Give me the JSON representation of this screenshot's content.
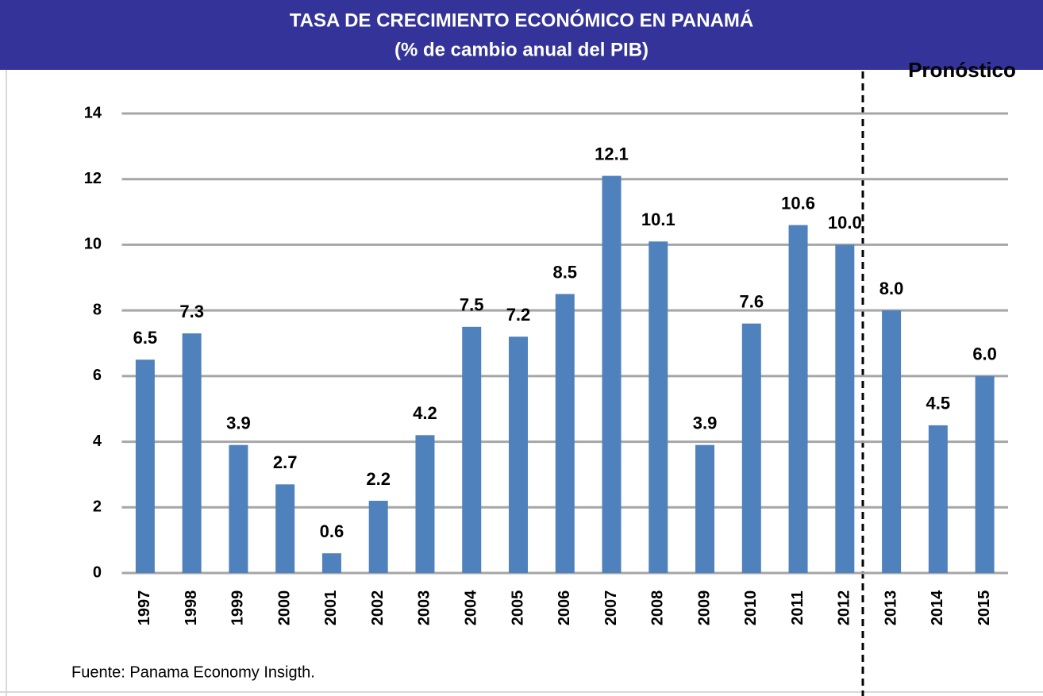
{
  "chart_data": {
    "type": "bar",
    "title": "TASA DE CRECIMIENTO ECONÓMICO EN PANAMÁ",
    "subtitle": "(% de cambio anual del PIB)",
    "annotation": "Pronóstico",
    "source": "Fuente: Panama Economy Insigth.",
    "categories": [
      "1997",
      "1998",
      "1999",
      "2000",
      "2001",
      "2002",
      "2003",
      "2004",
      "2005",
      "2006",
      "2007",
      "2008",
      "2009",
      "2010",
      "2011",
      "2012",
      "2013",
      "2014",
      "2015"
    ],
    "values": [
      6.5,
      7.3,
      3.9,
      2.7,
      0.6,
      2.2,
      4.2,
      7.5,
      7.2,
      8.5,
      12.1,
      10.1,
      3.9,
      7.6,
      10.6,
      10.0,
      8.0,
      4.5,
      6.0
    ],
    "value_labels": [
      "6.5",
      "7.3",
      "3.9",
      "2.7",
      "0.6",
      "2.2",
      "4.2",
      "7.5",
      "7.2",
      "8.5",
      "12.1",
      "10.1",
      "3.9",
      "7.6",
      "10.6",
      "10.0",
      "8.0",
      "4.5",
      "6.0"
    ],
    "color": "#4f81bd",
    "ylim": [
      0,
      14
    ],
    "yticks": [
      0,
      2,
      4,
      6,
      8,
      10,
      12,
      14
    ],
    "grid": true
  }
}
